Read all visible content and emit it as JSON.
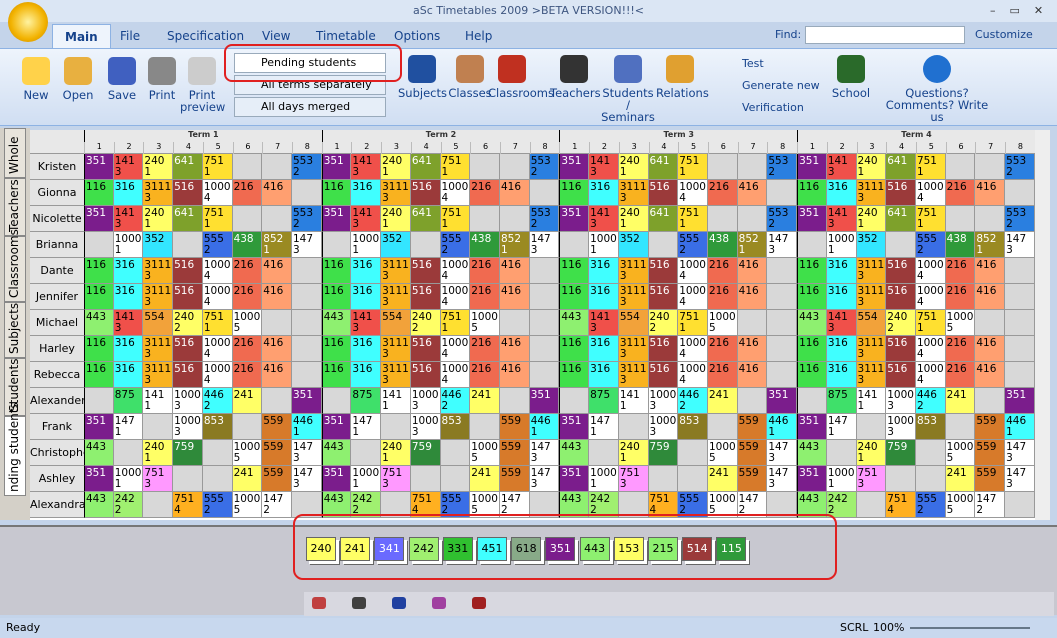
{
  "window": {
    "title": "aSc Timetables 2009  >BETA VERSION!!!<"
  },
  "tabs": [
    "Main",
    "File",
    "Specification",
    "View",
    "Timetable",
    "Options",
    "Help"
  ],
  "find_label": "Find:",
  "customize": "Customize",
  "ribbon": {
    "file_buttons": [
      "New",
      "Open",
      "Save",
      "Print",
      "Print preview"
    ],
    "dropdowns": [
      "Pending students",
      "All terms separately",
      "All days merged"
    ],
    "view_buttons": [
      "Subjects",
      "Classes",
      "Classrooms",
      "Teachers",
      "Students / Seminars",
      "Relations"
    ],
    "tools": [
      "Test",
      "Generate new",
      "Verification"
    ],
    "school": "School",
    "help": "Questions? Comments? Write us"
  },
  "side_tabs": [
    "Whole",
    "Teachers",
    "Classrooms",
    "Subjects",
    "Students",
    "nding students"
  ],
  "terms": [
    "Term 1",
    "Term 2",
    "Term 3",
    "Term 4"
  ],
  "periods": [
    1,
    2,
    3,
    4,
    5,
    6,
    7,
    8
  ],
  "students": [
    {
      "name": "Kristen",
      "cells": [
        "351",
        "141 3",
        "240 1",
        "641",
        "751 1",
        "",
        "",
        "553 2"
      ]
    },
    {
      "name": "Gionna",
      "cells": [
        "116",
        "316",
        "3111 3",
        "516",
        "1000 4",
        "216",
        "416",
        ""
      ]
    },
    {
      "name": "Nicolette",
      "cells": [
        "351",
        "141 3",
        "240 1",
        "641",
        "751 1",
        "",
        "",
        "553 2"
      ]
    },
    {
      "name": "Brianna",
      "cells": [
        "",
        "1000 1",
        "352",
        "",
        "555 2",
        "438",
        "852 1",
        "147 3"
      ]
    },
    {
      "name": "Dante",
      "cells": [
        "116",
        "316",
        "3111 3",
        "516",
        "1000 4",
        "216",
        "416",
        ""
      ]
    },
    {
      "name": "Jennifer",
      "cells": [
        "116",
        "316",
        "3111 3",
        "516",
        "1000 4",
        "216",
        "416",
        ""
      ]
    },
    {
      "name": "Michael",
      "cells": [
        "443",
        "141 3",
        "554",
        "240 2",
        "751 1",
        "1000 5",
        "",
        ""
      ]
    },
    {
      "name": "Harley",
      "cells": [
        "116",
        "316",
        "3111 3",
        "516",
        "1000 4",
        "216",
        "416",
        ""
      ]
    },
    {
      "name": "Rebecca",
      "cells": [
        "116",
        "316",
        "3111 3",
        "516",
        "1000 4",
        "216",
        "416",
        ""
      ]
    },
    {
      "name": "Alexander",
      "cells": [
        "",
        "875",
        "141 1",
        "1000 3",
        "446 2",
        "241",
        "",
        "351"
      ]
    },
    {
      "name": "Frank",
      "cells": [
        "351",
        "147 1",
        "",
        "1000 3",
        "853",
        "",
        "559",
        "446 1"
      ]
    },
    {
      "name": "Christopher",
      "cells": [
        "443",
        "",
        "240 1",
        "759",
        "",
        "1000 5",
        "559",
        "147 3"
      ]
    },
    {
      "name": "Ashley",
      "cells": [
        "351",
        "1000 1",
        "751 3",
        "",
        "",
        "241",
        "559",
        "147 3"
      ]
    },
    {
      "name": "Alexandra",
      "cells": [
        "443",
        "242 2",
        "",
        "751 4",
        "555 2",
        "1000 5",
        "147 2",
        ""
      ]
    }
  ],
  "cell_colors": {
    "351": "#7b1d8c",
    "141 3": "#f0504a",
    "240 1": "#ffff66",
    "641": "#7ea12b",
    "751 1": "#ffe030",
    "553 2": "#2a7fe0",
    "116": "#3fe04a",
    "316": "#40ffff",
    "3111 3": "#f9b21f",
    "516": "#9b3a3a",
    "216": "#f06a50",
    "416": "#ff9f70",
    "352": "#33e6ff",
    "555 2": "#3a6ee6",
    "438": "#2f9a3a",
    "852 1": "#9a8a22",
    "443": "#8ef070",
    "554": "#f2a23a",
    "240 2": "#ffff66",
    "875": "#3fe06a",
    "446 2": "#40ffff",
    "241": "#ffff66",
    "853": "#8a7a22",
    "559": "#d77a2a",
    "446 1": "#40ffff",
    "759": "#2f8a3a",
    "751 3": "#ff99ff",
    "242 2": "#a0f070",
    "751 4": "#ffb020"
  },
  "pending": [
    {
      "label": "240",
      "color": "#ffff66"
    },
    {
      "label": "241",
      "color": "#ffff66"
    },
    {
      "label": "341",
      "color": "#6a6aff"
    },
    {
      "label": "242",
      "color": "#a0f070"
    },
    {
      "label": "331",
      "color": "#30c030"
    },
    {
      "label": "451",
      "color": "#40ffff"
    },
    {
      "label": "618",
      "color": "#88aa88"
    },
    {
      "label": "351",
      "color": "#7b1d8c"
    },
    {
      "label": "443",
      "color": "#8ef070"
    },
    {
      "label": "153",
      "color": "#ffff66"
    },
    {
      "label": "215",
      "color": "#8ef070"
    },
    {
      "label": "514",
      "color": "#9b3a3a"
    },
    {
      "label": "115",
      "color": "#2f9a3a"
    }
  ],
  "status": {
    "left": "Ready",
    "scrl": "SCRL",
    "zoom": "100%"
  }
}
